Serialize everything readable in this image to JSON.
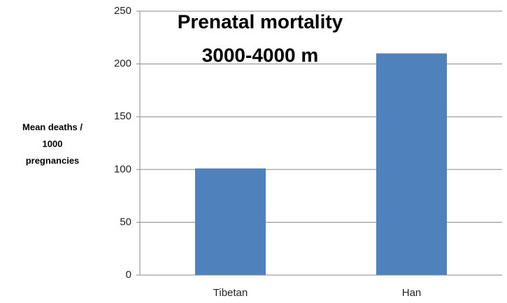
{
  "chart_data": {
    "type": "bar",
    "title": [
      "Prenatal mortality",
      "3000-4000 m"
    ],
    "y_label": [
      "Mean deaths /",
      "1000",
      "pregnancies"
    ],
    "categories": [
      "Tibetan",
      "Han"
    ],
    "values": [
      101,
      210
    ],
    "color": "#4f81bd",
    "ylim": [
      0,
      250
    ],
    "yticks": [
      0,
      50,
      100,
      150,
      200,
      250
    ],
    "grid": true
  }
}
